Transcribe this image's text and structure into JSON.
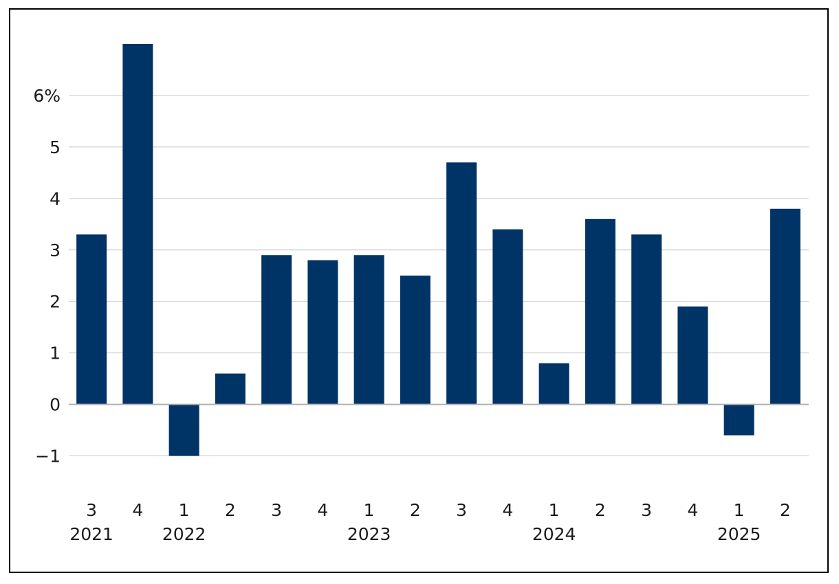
{
  "chart_data": {
    "type": "bar",
    "categories": [
      "3",
      "4",
      "1",
      "2",
      "3",
      "4",
      "1",
      "2",
      "3",
      "4",
      "1",
      "2",
      "3",
      "4",
      "1",
      "2"
    ],
    "years": [
      {
        "label": "2021",
        "index": 0
      },
      {
        "label": "2022",
        "index": 2
      },
      {
        "label": "2023",
        "index": 6
      },
      {
        "label": "2024",
        "index": 10
      },
      {
        "label": "2025",
        "index": 14
      }
    ],
    "values": [
      3.3,
      7.0,
      -1.0,
      0.6,
      2.9,
      2.8,
      2.9,
      2.5,
      4.7,
      3.4,
      0.8,
      3.6,
      3.3,
      1.9,
      -0.6,
      3.8
    ],
    "yticks": [
      {
        "value": -1,
        "label": "−1"
      },
      {
        "value": 0,
        "label": "0"
      },
      {
        "value": 1,
        "label": "1"
      },
      {
        "value": 2,
        "label": "2"
      },
      {
        "value": 3,
        "label": "3"
      },
      {
        "value": 4,
        "label": "4"
      },
      {
        "value": 5,
        "label": "5"
      },
      {
        "value": 6,
        "label": "6%"
      }
    ],
    "ylim": [
      -1.5,
      7.0
    ],
    "title": "",
    "xlabel": "",
    "ylabel": "",
    "grid": true,
    "legend": "none",
    "colors": {
      "bar": "#003366",
      "grid": "#c8c8c8",
      "zero_line": "#b0b0b0"
    }
  }
}
